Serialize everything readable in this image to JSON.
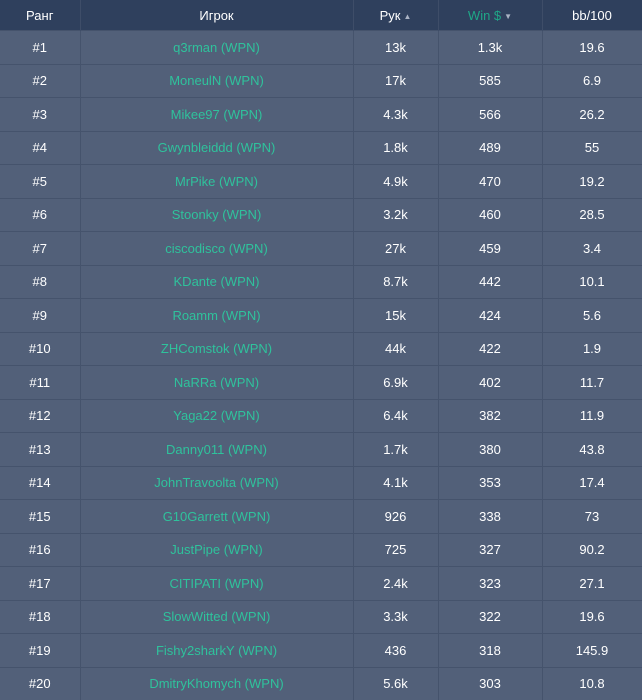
{
  "table": {
    "headers": {
      "rank": "Ранг",
      "player": "Игрок",
      "hands": "Рук",
      "hands_sort": "▲",
      "win": "Win $",
      "win_sort": "▼",
      "bb": "bb/100"
    },
    "active_sort_color": "#1fa787",
    "rows": [
      {
        "rank": "#1",
        "player": "q3rman (WPN)",
        "hands": "13k",
        "win": "1.3k",
        "bb": "19.6"
      },
      {
        "rank": "#2",
        "player": "MoneulN (WPN)",
        "hands": "17k",
        "win": "585",
        "bb": "6.9"
      },
      {
        "rank": "#3",
        "player": "Mikee97 (WPN)",
        "hands": "4.3k",
        "win": "566",
        "bb": "26.2"
      },
      {
        "rank": "#4",
        "player": "Gwynbleiddd (WPN)",
        "hands": "1.8k",
        "win": "489",
        "bb": "55"
      },
      {
        "rank": "#5",
        "player": "MrPike (WPN)",
        "hands": "4.9k",
        "win": "470",
        "bb": "19.2"
      },
      {
        "rank": "#6",
        "player": "Stoonky (WPN)",
        "hands": "3.2k",
        "win": "460",
        "bb": "28.5"
      },
      {
        "rank": "#7",
        "player": "ciscodisco (WPN)",
        "hands": "27k",
        "win": "459",
        "bb": "3.4"
      },
      {
        "rank": "#8",
        "player": "KDante (WPN)",
        "hands": "8.7k",
        "win": "442",
        "bb": "10.1"
      },
      {
        "rank": "#9",
        "player": "Roamm (WPN)",
        "hands": "15k",
        "win": "424",
        "bb": "5.6"
      },
      {
        "rank": "#10",
        "player": "ZHComstok (WPN)",
        "hands": "44k",
        "win": "422",
        "bb": "1.9"
      },
      {
        "rank": "#11",
        "player": "NaRRa (WPN)",
        "hands": "6.9k",
        "win": "402",
        "bb": "11.7"
      },
      {
        "rank": "#12",
        "player": "Yaga22 (WPN)",
        "hands": "6.4k",
        "win": "382",
        "bb": "11.9"
      },
      {
        "rank": "#13",
        "player": "Danny011 (WPN)",
        "hands": "1.7k",
        "win": "380",
        "bb": "43.8"
      },
      {
        "rank": "#14",
        "player": "JohnTravoolta (WPN)",
        "hands": "4.1k",
        "win": "353",
        "bb": "17.4"
      },
      {
        "rank": "#15",
        "player": "G10Garrett (WPN)",
        "hands": "926",
        "win": "338",
        "bb": "73"
      },
      {
        "rank": "#16",
        "player": "JustPipe (WPN)",
        "hands": "725",
        "win": "327",
        "bb": "90.2"
      },
      {
        "rank": "#17",
        "player": "CITIPATI (WPN)",
        "hands": "2.4k",
        "win": "323",
        "bb": "27.1"
      },
      {
        "rank": "#18",
        "player": "SlowWitted (WPN)",
        "hands": "3.3k",
        "win": "322",
        "bb": "19.6"
      },
      {
        "rank": "#19",
        "player": "Fishy2sharkY (WPN)",
        "hands": "436",
        "win": "318",
        "bb": "145.9"
      },
      {
        "rank": "#20",
        "player": "DmitryKhomych (WPN)",
        "hands": "5.6k",
        "win": "303",
        "bb": "10.8"
      }
    ]
  }
}
